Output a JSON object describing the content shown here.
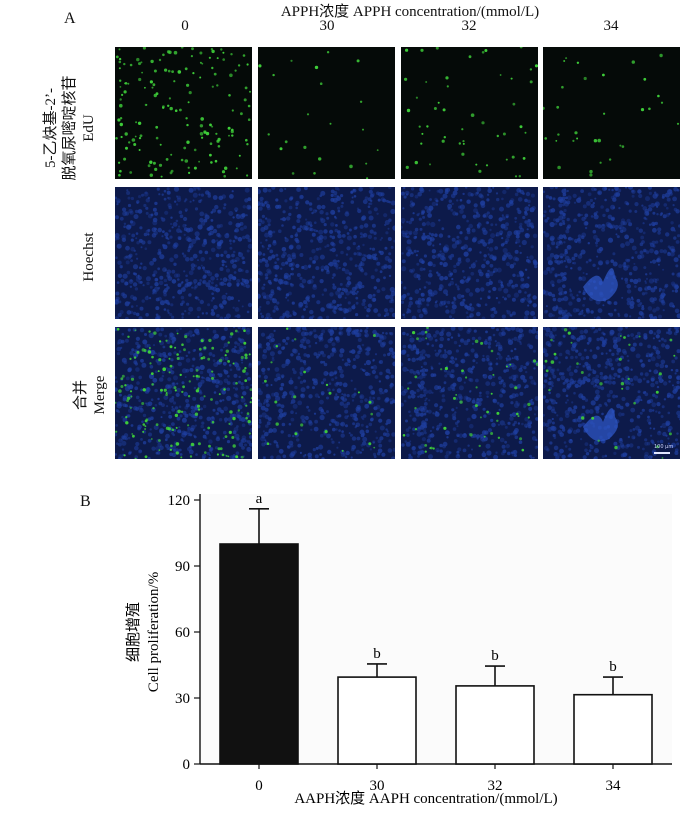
{
  "panel_a": {
    "letter": "A",
    "column_title": "APPH浓度 APPH concentration/(mmol/L)",
    "columns": [
      "0",
      "30",
      "32",
      "34"
    ],
    "rows": [
      {
        "label_zh_1": "5-乙炔基-2’-",
        "label_zh_2": "脱氧尿嘧啶核苷",
        "label_en": "EdU",
        "stain": "edu"
      },
      {
        "label_zh_1": "",
        "label_zh_2": "",
        "label_en": "Hoechst",
        "stain": "hoechst"
      },
      {
        "label_zh_1": "",
        "label_zh_2": "合并",
        "label_en": "Merge",
        "stain": "merge"
      }
    ],
    "green_density": [
      0.9,
      0.12,
      0.28,
      0.18
    ],
    "scale_bar_text": "100 μm",
    "colors": {
      "edu_bg": "#050a08",
      "edu_dot": "#3fd13a",
      "hoechst_bg": "#0d1a4a",
      "hoechst_cell": "#1f3fa0",
      "frame": "#9a9a9a"
    }
  },
  "panel_b": {
    "letter": "B",
    "ylabel_zh": "细胞增殖",
    "ylabel_en": "Cell proliferation/%",
    "xlabel": "AAPH浓度  AAPH concentration/(mmol/L)"
  },
  "chart_data": {
    "type": "bar",
    "categories": [
      "0",
      "30",
      "32",
      "34"
    ],
    "values": [
      100,
      39.5,
      35.5,
      31.5
    ],
    "error": [
      16,
      6,
      9,
      8
    ],
    "significance": [
      "a",
      "b",
      "b",
      "b"
    ],
    "bar_colors": [
      "#111111",
      "#ffffff",
      "#ffffff",
      "#ffffff"
    ],
    "ylim": [
      0,
      120
    ],
    "yticks": [
      "0",
      "30",
      "60",
      "90",
      "120"
    ],
    "xlabel": "AAPH浓度  AAPH concentration/(mmol/L)",
    "ylabel": "细胞增殖 Cell proliferation/%"
  }
}
